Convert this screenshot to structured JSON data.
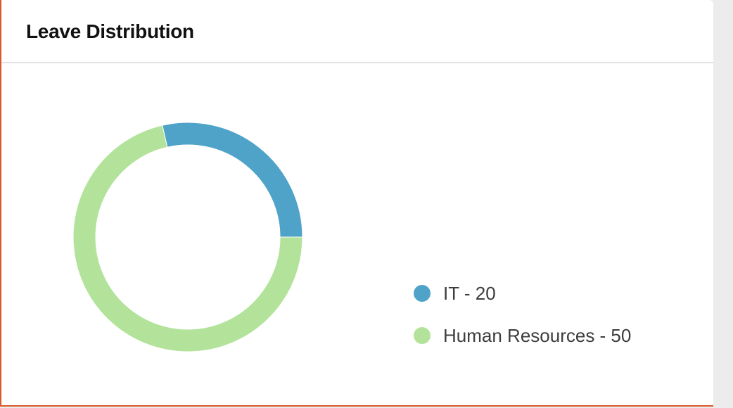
{
  "card": {
    "title": "Leave Distribution"
  },
  "chart_data": {
    "type": "pie",
    "variant": "donut",
    "title": "Leave Distribution",
    "slices": [
      {
        "label": "IT",
        "value": 20,
        "color": "#4fa3c9",
        "legend_text": "IT - 20"
      },
      {
        "label": "Human Resources",
        "value": 50,
        "color": "#b3e39a",
        "legend_text": "Human Resources - 50"
      }
    ],
    "legend_position": "right"
  }
}
